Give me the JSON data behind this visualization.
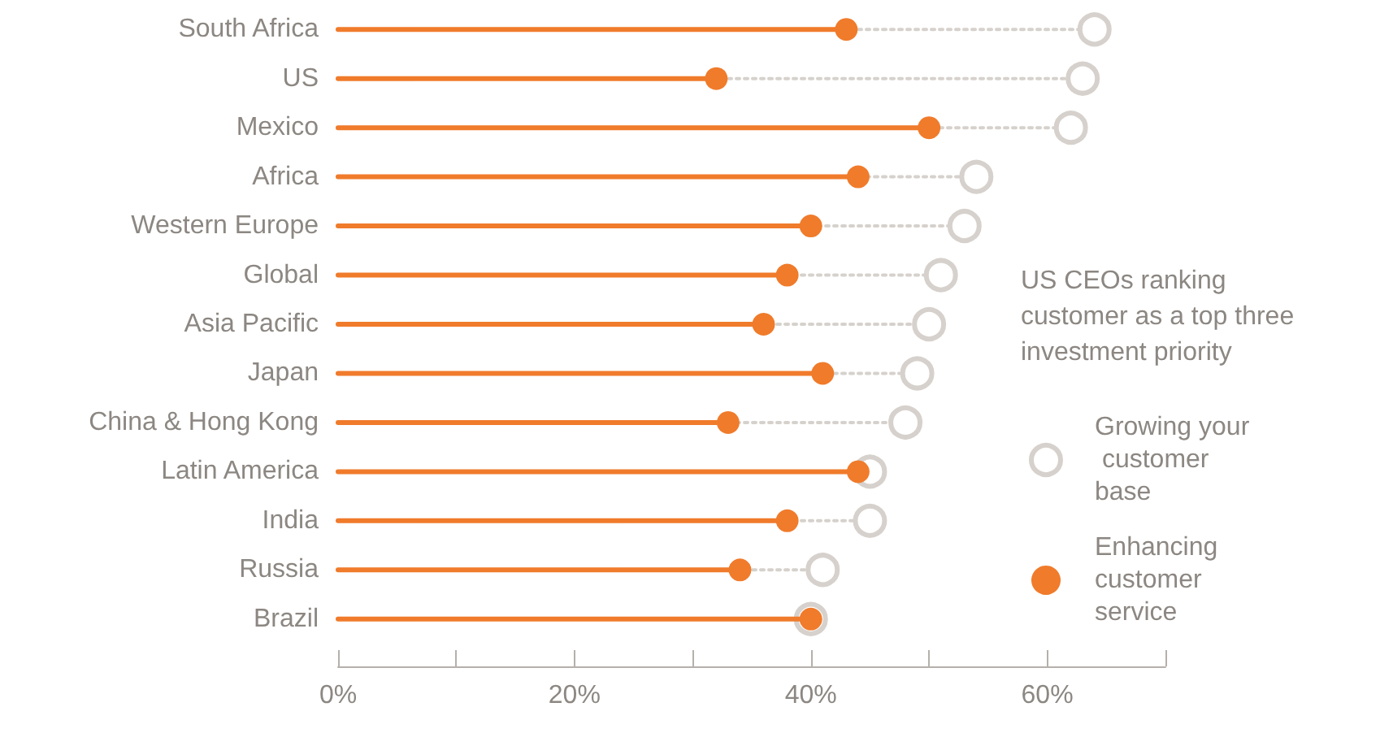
{
  "chart_data": {
    "type": "lollipop",
    "orientation": "horizontal",
    "categories": [
      "South Africa",
      "US",
      "Mexico",
      "Africa",
      "Western Europe",
      "Global",
      "Asia Pacific",
      "Japan",
      "China & Hong Kong",
      "Latin America",
      "India",
      "Russia",
      "Brazil"
    ],
    "series": [
      {
        "name": "Growing your customer base",
        "color": "#d6d1cc",
        "line_style": "dotted",
        "values": [
          64,
          63,
          62,
          54,
          53,
          51,
          50,
          49,
          48,
          45,
          45,
          41,
          40
        ]
      },
      {
        "name": "Enhancing customer service",
        "color": "#f07b2b",
        "line_style": "solid",
        "values": [
          43,
          32,
          50,
          44,
          40,
          38,
          36,
          41,
          33,
          44,
          38,
          34,
          40
        ]
      }
    ],
    "xlim": [
      0,
      70
    ],
    "xticks": [
      {
        "value": 0,
        "label": "0%"
      },
      {
        "value": 10,
        "label": null
      },
      {
        "value": 20,
        "label": "20%"
      },
      {
        "value": 30,
        "label": null
      },
      {
        "value": 40,
        "label": "40%"
      },
      {
        "value": 50,
        "label": null
      },
      {
        "value": 60,
        "label": "60%"
      },
      {
        "value": 70,
        "label": null
      }
    ],
    "legend_title": "US CEOs ranking customer as a top three investment priority",
    "legend": "right",
    "marker": "circle",
    "grid": false
  }
}
